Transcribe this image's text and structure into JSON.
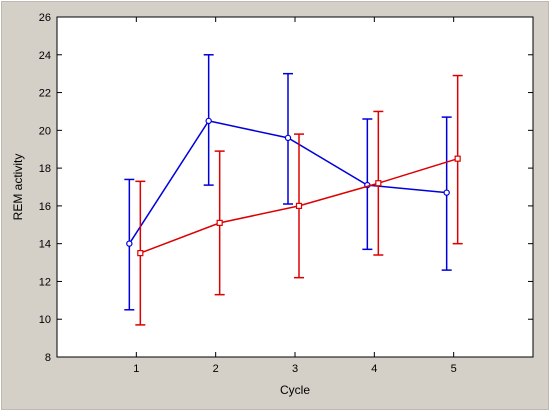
{
  "chart_data": {
    "type": "line",
    "xlabel": "Cycle",
    "ylabel": "REM activity",
    "xlim": [
      0,
      6
    ],
    "ylim": [
      8,
      26
    ],
    "x_ticks": [
      "1",
      "2",
      "3",
      "4",
      "5"
    ],
    "y_ticks": [
      "8",
      "10",
      "12",
      "14",
      "16",
      "18",
      "20",
      "22",
      "24",
      "26"
    ],
    "grid": false,
    "series": [
      {
        "color": "#0000dd",
        "marker": "circle",
        "x": [
          1,
          2,
          3,
          4,
          5
        ],
        "values": [
          14.0,
          20.5,
          19.6,
          17.1,
          16.7
        ],
        "error_low": [
          10.5,
          17.1,
          16.1,
          13.7,
          12.6
        ],
        "error_high": [
          17.4,
          24.0,
          23.0,
          20.6,
          20.7
        ]
      },
      {
        "color": "#dd0000",
        "marker": "square",
        "x": [
          1,
          2,
          3,
          4,
          5
        ],
        "values": [
          13.5,
          15.1,
          16.0,
          17.2,
          18.5
        ],
        "error_low": [
          9.7,
          11.3,
          12.2,
          13.4,
          14.0
        ],
        "error_high": [
          17.3,
          18.9,
          19.8,
          21.0,
          22.9
        ]
      }
    ]
  }
}
